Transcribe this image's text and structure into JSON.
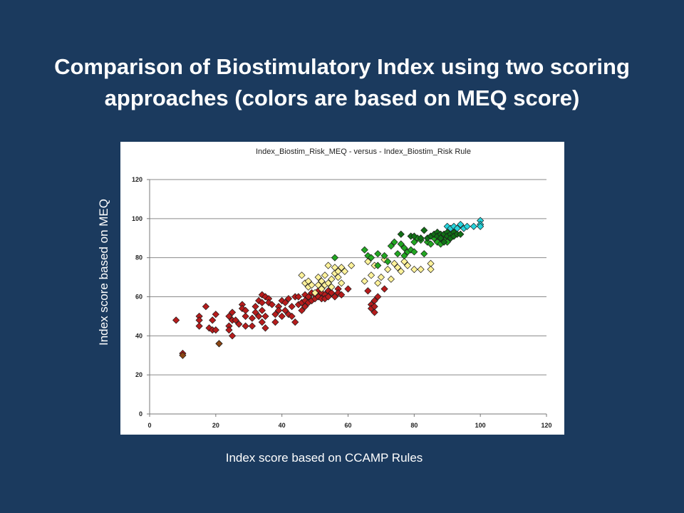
{
  "slide": {
    "title_line1": "Comparison of Biostimulatory Index using two scoring",
    "title_line2": "approaches (colors are based on MEQ score)",
    "y_caption": "Index score based on MEQ",
    "x_caption": "Index score based on CCAMP Rules",
    "background_color": "#1b3a5e"
  },
  "chart_data": {
    "type": "scatter",
    "title": "Index_Biostim_Risk_MEQ - versus - Index_Biostim_Risk Rule",
    "xlabel": "",
    "ylabel": "",
    "xlim": [
      0,
      120
    ],
    "ylim": [
      0,
      120
    ],
    "x_ticks": [
      0,
      20,
      40,
      60,
      80,
      100,
      120
    ],
    "y_ticks": [
      0,
      20,
      40,
      60,
      80,
      100,
      120
    ],
    "grid": "horizontal",
    "marker": "diamond",
    "legend": "none",
    "series": [
      {
        "color": "#b71c1c",
        "x": [
          8,
          10,
          15,
          15,
          15,
          17,
          18,
          19,
          19,
          20,
          20,
          21,
          24,
          24,
          24,
          25,
          25,
          25,
          26,
          27,
          28,
          28,
          29,
          29,
          29,
          31,
          31,
          32,
          32,
          33,
          33,
          34,
          34,
          34,
          34,
          35,
          35,
          35,
          36,
          36,
          37,
          38,
          38,
          39,
          39,
          40,
          40,
          41,
          41,
          42,
          42,
          43,
          43,
          44,
          44,
          45,
          45,
          46,
          46,
          47,
          47,
          47,
          48,
          48,
          49,
          49,
          50,
          50,
          51,
          51,
          52,
          52,
          53,
          53,
          54,
          54,
          55,
          56,
          57,
          57,
          58,
          60,
          66,
          67,
          67,
          68,
          68,
          68,
          69,
          71
        ],
        "y": [
          48,
          31,
          50,
          48,
          45,
          55,
          44,
          48,
          43,
          51,
          43,
          36,
          50,
          45,
          43,
          52,
          48,
          40,
          48,
          46,
          56,
          54,
          53,
          50,
          45,
          49,
          45,
          55,
          52,
          58,
          50,
          61,
          57,
          53,
          47,
          60,
          50,
          44,
          59,
          57,
          56,
          51,
          47,
          55,
          53,
          58,
          50,
          57,
          53,
          59,
          51,
          55,
          50,
          60,
          47,
          60,
          56,
          57,
          53,
          61,
          58,
          55,
          60,
          57,
          62,
          58,
          61,
          59,
          63,
          60,
          62,
          59,
          61,
          59,
          63,
          60,
          62,
          60,
          64,
          62,
          61,
          64,
          63,
          56,
          54,
          52,
          58,
          55,
          60,
          64
        ]
      },
      {
        "color": "#fff29a",
        "x": [
          46,
          47,
          48,
          48,
          49,
          50,
          51,
          51,
          52,
          52,
          53,
          53,
          54,
          54,
          55,
          55,
          56,
          56,
          57,
          57,
          58,
          58,
          59,
          61,
          65,
          66,
          67,
          68,
          69,
          70,
          71,
          72,
          73,
          74,
          75,
          76,
          77,
          78,
          80,
          82,
          85,
          85
        ],
        "y": [
          71,
          67,
          68,
          65,
          66,
          62,
          70,
          66,
          68,
          64,
          71,
          66,
          76,
          67,
          65,
          69,
          75,
          72,
          73,
          70,
          75,
          67,
          73,
          76,
          68,
          78,
          71,
          76,
          67,
          70,
          79,
          74,
          69,
          77,
          75,
          73,
          78,
          76,
          74,
          74,
          77,
          74
        ]
      },
      {
        "color": "#22a722",
        "x": [
          56,
          65,
          66,
          67,
          69,
          69,
          71,
          72,
          73,
          74,
          75,
          76,
          77,
          77,
          78,
          79,
          80,
          80,
          81,
          82,
          83,
          84,
          85,
          86,
          87,
          88,
          89,
          90,
          91
        ],
        "y": [
          80,
          84,
          81,
          80,
          82,
          76,
          81,
          78,
          86,
          88,
          82,
          87,
          85,
          81,
          83,
          84,
          88,
          83,
          90,
          89,
          82,
          88,
          87,
          90,
          88,
          87,
          89,
          88,
          90
        ]
      },
      {
        "color": "#116f16",
        "x": [
          76,
          79,
          80,
          82,
          83,
          84,
          85,
          86,
          87,
          87,
          88,
          88,
          89,
          89,
          90,
          90,
          91,
          91,
          92,
          92,
          93,
          94
        ],
        "y": [
          92,
          91,
          91,
          90,
          94,
          90,
          91,
          92,
          93,
          91,
          92,
          90,
          92,
          88,
          93,
          91,
          92,
          90,
          93,
          91,
          92,
          92
        ]
      },
      {
        "color": "#26d4dc",
        "x": [
          90,
          91,
          92,
          93,
          94,
          95,
          96,
          98,
          100,
          100,
          100
        ],
        "y": [
          96,
          95,
          96,
          95,
          97,
          95,
          96,
          96,
          99,
          97,
          96
        ]
      },
      {
        "color": "#8b4513",
        "x": [
          10,
          21
        ],
        "y": [
          30,
          36
        ]
      }
    ]
  }
}
